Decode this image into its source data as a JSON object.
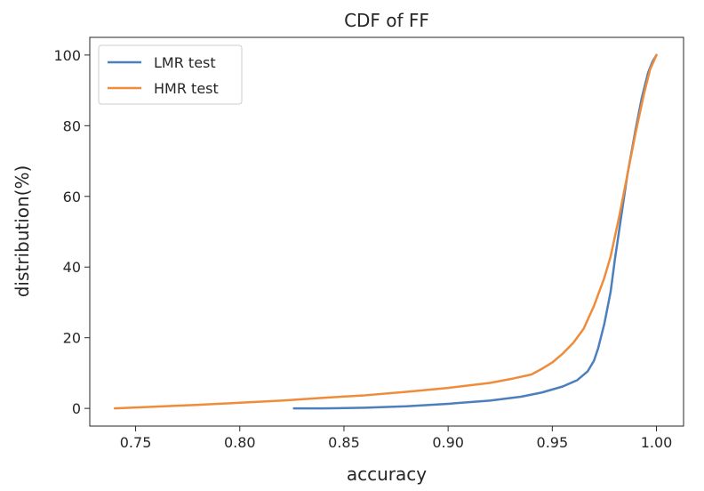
{
  "chart_data": {
    "type": "line",
    "title": "CDF of FF",
    "xlabel": "accuracy",
    "ylabel": "distribution(%)",
    "xlim": [
      0.728,
      1.013
    ],
    "ylim": [
      -5,
      105
    ],
    "xticks": [
      0.75,
      0.8,
      0.85,
      0.9,
      0.95,
      1.0
    ],
    "xtick_labels": [
      "0.75",
      "0.80",
      "0.85",
      "0.90",
      "0.95",
      "1.00"
    ],
    "yticks": [
      0,
      20,
      40,
      60,
      80,
      100
    ],
    "ytick_labels": [
      "0",
      "20",
      "40",
      "60",
      "80",
      "100"
    ],
    "grid": false,
    "legend_position": "top-left",
    "series": [
      {
        "name": "LMR test",
        "color": "#4c7fbd",
        "x": [
          0.826,
          0.84,
          0.86,
          0.88,
          0.9,
          0.92,
          0.935,
          0.945,
          0.955,
          0.962,
          0.967,
          0.97,
          0.972,
          0.975,
          0.978,
          0.98,
          0.983,
          0.986,
          0.99,
          0.993,
          0.996,
          0.998,
          1.0
        ],
        "y": [
          0,
          0,
          0.2,
          0.6,
          1.3,
          2.2,
          3.3,
          4.5,
          6.2,
          8.0,
          10.5,
          13.5,
          17.0,
          24.0,
          33.0,
          42.0,
          54.0,
          66.0,
          79.0,
          88.0,
          95.0,
          98.0,
          100
        ]
      },
      {
        "name": "HMR test",
        "color": "#ef8c3a",
        "x": [
          0.74,
          0.76,
          0.78,
          0.8,
          0.82,
          0.84,
          0.86,
          0.88,
          0.9,
          0.92,
          0.93,
          0.94,
          0.945,
          0.95,
          0.955,
          0.96,
          0.965,
          0.97,
          0.975,
          0.978,
          0.982,
          0.986,
          0.99,
          0.994,
          0.997,
          1.0
        ],
        "y": [
          0,
          0.5,
          1.0,
          1.6,
          2.2,
          3.0,
          3.7,
          4.7,
          5.8,
          7.2,
          8.3,
          9.6,
          11.2,
          13.0,
          15.5,
          18.5,
          22.5,
          29.0,
          37.0,
          43.0,
          54.0,
          66.0,
          78.0,
          89.0,
          96.0,
          100
        ]
      }
    ]
  }
}
